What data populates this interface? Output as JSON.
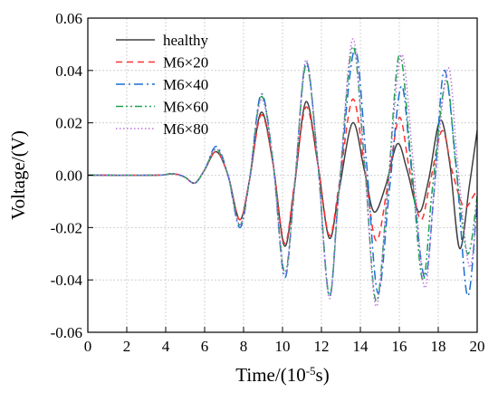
{
  "chart_data": {
    "type": "line",
    "xlabel": "Time/(10",
    "xlabel_exp": "-5",
    "xlabel_suffix": "s)",
    "ylabel": "Voltage/(V)",
    "xlim": [
      0,
      20
    ],
    "ylim": [
      -0.06,
      0.06
    ],
    "xticks": [
      0,
      2,
      4,
      6,
      8,
      10,
      12,
      14,
      16,
      18,
      20
    ],
    "yticks": [
      -0.06,
      -0.04,
      -0.02,
      0.0,
      0.02,
      0.04,
      0.06
    ],
    "ytick_labels": [
      "-0.06",
      "-0.04",
      "-0.02",
      "0.00",
      "0.02",
      "0.04",
      "0.06"
    ],
    "grid": true,
    "legend_position": "top-left",
    "series": [
      {
        "name": "healthy",
        "color": "#404040",
        "dash": "solid",
        "x": [
          0,
          3.5,
          4.2,
          4.6,
          5.0,
          5.5,
          6.0,
          6.6,
          7.2,
          7.8,
          8.3,
          8.9,
          9.5,
          10.1,
          10.6,
          11.2,
          11.8,
          12.4,
          12.9,
          13.6,
          14.2,
          14.7,
          15.3,
          15.9,
          16.4,
          17.0,
          17.5,
          18.1,
          18.6,
          19.1,
          19.6,
          20.0
        ],
        "y": [
          0,
          0,
          0.0005,
          0.0003,
          -0.0008,
          -0.003,
          0.002,
          0.009,
          0.0,
          -0.017,
          -0.002,
          0.024,
          0.005,
          -0.027,
          -0.005,
          0.028,
          0.005,
          -0.024,
          -0.006,
          0.02,
          0.002,
          -0.014,
          -0.004,
          0.012,
          0.002,
          -0.014,
          -0.002,
          0.021,
          0.004,
          -0.028,
          -0.004,
          0.017
        ]
      },
      {
        "name": "M6×20",
        "color": "#ff3030",
        "dash": "7,5",
        "x": [
          0,
          3.5,
          4.2,
          4.6,
          5.0,
          5.5,
          6.0,
          6.6,
          7.2,
          7.8,
          8.3,
          8.9,
          9.5,
          10.1,
          10.6,
          11.2,
          11.8,
          12.4,
          12.9,
          13.6,
          14.2,
          14.8,
          15.4,
          16.0,
          16.5,
          17.1,
          17.6,
          18.2,
          18.7,
          19.3,
          19.8,
          20.0
        ],
        "y": [
          0,
          0,
          0.0005,
          0.0003,
          -0.0008,
          -0.003,
          0.002,
          0.009,
          0.0,
          -0.017,
          -0.002,
          0.023,
          0.005,
          -0.026,
          -0.004,
          0.026,
          0.005,
          -0.023,
          -0.004,
          0.029,
          0.004,
          -0.025,
          -0.004,
          0.022,
          0.003,
          -0.017,
          -0.002,
          0.017,
          0.002,
          -0.012,
          -0.008,
          -0.005
        ]
      },
      {
        "name": "M6×40",
        "color": "#1a6fd4",
        "dash": "10,4,2,4",
        "x": [
          0,
          3.5,
          4.2,
          4.6,
          5.0,
          5.5,
          6.0,
          6.6,
          7.2,
          7.8,
          8.3,
          8.9,
          9.5,
          10.1,
          10.6,
          11.2,
          11.8,
          12.4,
          12.9,
          13.7,
          14.3,
          14.9,
          15.5,
          16.1,
          16.6,
          17.3,
          17.8,
          18.3,
          18.9,
          19.5,
          20.0
        ],
        "y": [
          0,
          0,
          0.0005,
          0.0003,
          -0.0008,
          -0.003,
          0.002,
          0.011,
          0.0,
          -0.02,
          -0.002,
          0.031,
          0.006,
          -0.039,
          -0.006,
          0.043,
          0.006,
          -0.046,
          -0.006,
          0.048,
          0.006,
          -0.045,
          -0.005,
          0.034,
          0.004,
          -0.039,
          -0.005,
          0.04,
          0.005,
          -0.046,
          -0.01
        ]
      },
      {
        "name": "M6×60",
        "color": "#20a050",
        "dash": "8,3,2,3,2,3",
        "x": [
          0,
          3.5,
          4.2,
          4.6,
          5.0,
          5.5,
          6.0,
          6.6,
          7.2,
          7.8,
          8.3,
          8.9,
          9.5,
          10.1,
          10.6,
          11.2,
          11.8,
          12.4,
          12.9,
          13.6,
          14.2,
          14.8,
          15.4,
          16.0,
          16.6,
          17.2,
          17.7,
          18.4,
          18.9,
          19.5,
          20.0
        ],
        "y": [
          0,
          0,
          0.0005,
          0.0003,
          -0.0008,
          -0.003,
          0.002,
          0.01,
          0.0,
          -0.019,
          -0.002,
          0.03,
          0.006,
          -0.037,
          -0.006,
          0.042,
          0.006,
          -0.046,
          -0.006,
          0.049,
          0.006,
          -0.048,
          -0.006,
          0.046,
          0.006,
          -0.04,
          -0.005,
          0.036,
          0.004,
          -0.03,
          -0.008
        ]
      },
      {
        "name": "M6×80",
        "color": "#c070e0",
        "dash": "1.5,2.5",
        "x": [
          0,
          3.5,
          4.2,
          4.6,
          5.0,
          5.5,
          6.0,
          6.6,
          7.2,
          7.8,
          8.3,
          8.9,
          9.5,
          10.1,
          10.6,
          11.2,
          11.8,
          12.4,
          12.9,
          13.6,
          14.2,
          14.8,
          15.4,
          16.1,
          16.7,
          17.3,
          17.8,
          18.5,
          19.0,
          19.6,
          20.0
        ],
        "y": [
          0,
          0,
          0.0005,
          0.0003,
          -0.0008,
          -0.003,
          0.002,
          0.01,
          0.0,
          -0.019,
          -0.002,
          0.029,
          0.006,
          -0.038,
          -0.006,
          0.044,
          0.006,
          -0.047,
          -0.006,
          0.052,
          0.006,
          -0.05,
          -0.006,
          0.046,
          0.006,
          -0.043,
          -0.005,
          0.041,
          0.004,
          -0.035,
          -0.01
        ]
      }
    ]
  }
}
